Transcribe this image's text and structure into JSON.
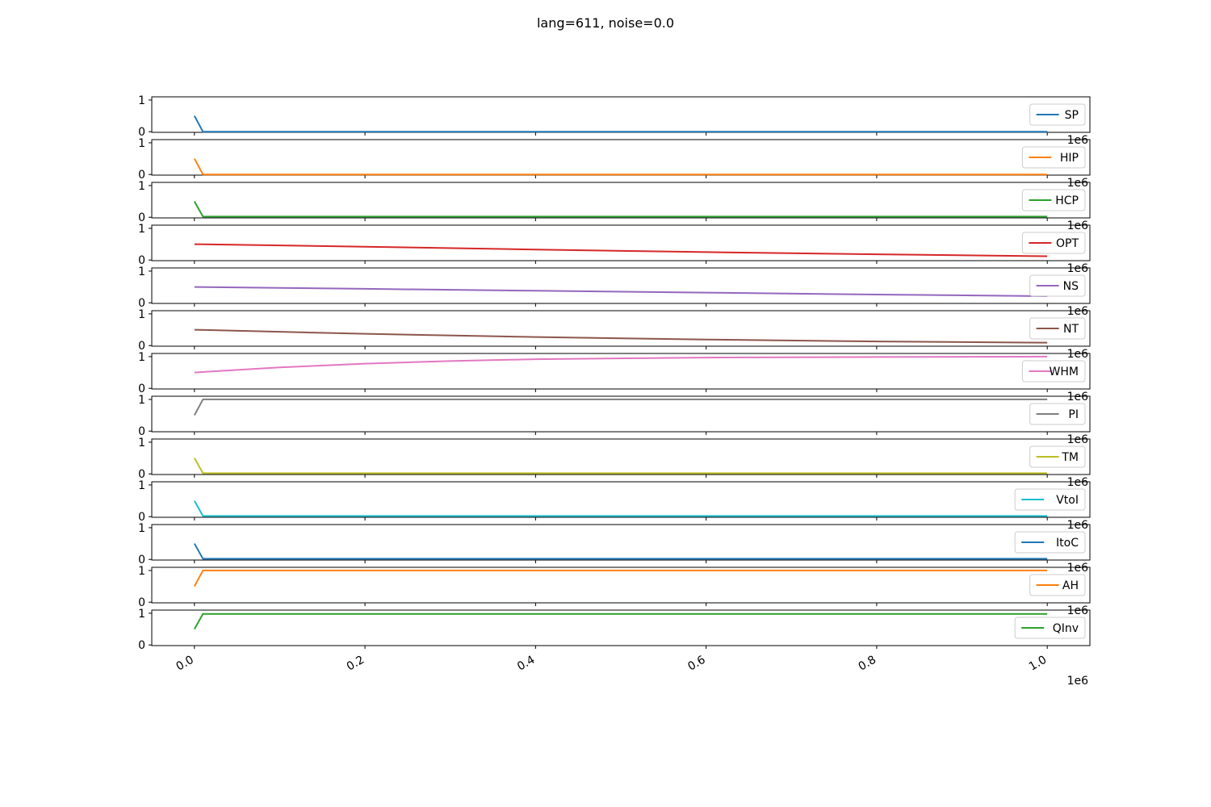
{
  "chart_data": {
    "type": "line",
    "title": "lang=611, noise=0.0",
    "xlim": [
      -50000,
      1050000
    ],
    "x_ticks": [
      0,
      200000,
      400000,
      600000,
      800000,
      1000000
    ],
    "x_tick_labels": [
      "0.0",
      "0.2",
      "0.4",
      "0.6",
      "0.8",
      "1.0"
    ],
    "x_offset_label": "1e6",
    "ylim": [
      -0.02,
      1.1
    ],
    "y_ticks": [
      0,
      1
    ],
    "y_tick_labels": [
      "0",
      "1"
    ],
    "legend_placement": "center-right",
    "grid": false,
    "series": [
      {
        "name": "SP",
        "color": "#1f77b4",
        "points": [
          [
            0,
            0.5
          ],
          [
            10000,
            0.0
          ],
          [
            1000000,
            0.0
          ]
        ]
      },
      {
        "name": "HIP",
        "color": "#ff7f0e",
        "points": [
          [
            0,
            0.5
          ],
          [
            10000,
            0.0
          ],
          [
            1000000,
            0.0
          ]
        ]
      },
      {
        "name": "HCP",
        "color": "#2ca02c",
        "points": [
          [
            0,
            0.5
          ],
          [
            10000,
            0.02
          ],
          [
            1000000,
            0.02
          ]
        ]
      },
      {
        "name": "OPT",
        "color": "#d62728",
        "points": [
          [
            0,
            0.5
          ],
          [
            200000,
            0.42
          ],
          [
            400000,
            0.33
          ],
          [
            600000,
            0.25
          ],
          [
            800000,
            0.18
          ],
          [
            1000000,
            0.12
          ]
        ]
      },
      {
        "name": "NS",
        "color": "#9467bd",
        "points": [
          [
            0,
            0.5
          ],
          [
            200000,
            0.44
          ],
          [
            400000,
            0.38
          ],
          [
            600000,
            0.32
          ],
          [
            800000,
            0.26
          ],
          [
            1000000,
            0.21
          ]
        ]
      },
      {
        "name": "NT",
        "color": "#8c564b",
        "points": [
          [
            0,
            0.5
          ],
          [
            200000,
            0.37
          ],
          [
            400000,
            0.27
          ],
          [
            600000,
            0.19
          ],
          [
            800000,
            0.13
          ],
          [
            1000000,
            0.09
          ]
        ]
      },
      {
        "name": "WHM",
        "color": "#e377c2",
        "points": [
          [
            0,
            0.5
          ],
          [
            100000,
            0.66
          ],
          [
            200000,
            0.78
          ],
          [
            300000,
            0.86
          ],
          [
            400000,
            0.92
          ],
          [
            600000,
            0.97
          ],
          [
            800000,
            0.99
          ],
          [
            1000000,
            1.0
          ]
        ]
      },
      {
        "name": "PI",
        "color": "#7f7f7f",
        "points": [
          [
            0,
            0.5
          ],
          [
            10000,
            1.0
          ],
          [
            1000000,
            1.0
          ]
        ]
      },
      {
        "name": "TM",
        "color": "#bcbd22",
        "points": [
          [
            0,
            0.5
          ],
          [
            10000,
            0.02
          ],
          [
            1000000,
            0.02
          ]
        ]
      },
      {
        "name": "VtoI",
        "color": "#17becf",
        "points": [
          [
            0,
            0.5
          ],
          [
            10000,
            0.02
          ],
          [
            1000000,
            0.02
          ]
        ]
      },
      {
        "name": "ItoC",
        "color": "#1f77b4",
        "points": [
          [
            0,
            0.5
          ],
          [
            10000,
            0.02
          ],
          [
            1000000,
            0.02
          ]
        ]
      },
      {
        "name": "AH",
        "color": "#ff7f0e",
        "points": [
          [
            0,
            0.5
          ],
          [
            10000,
            1.0
          ],
          [
            1000000,
            1.0
          ]
        ]
      },
      {
        "name": "QInv",
        "color": "#2ca02c",
        "points": [
          [
            0,
            0.5
          ],
          [
            10000,
            0.98
          ],
          [
            1000000,
            0.98
          ]
        ]
      }
    ]
  }
}
